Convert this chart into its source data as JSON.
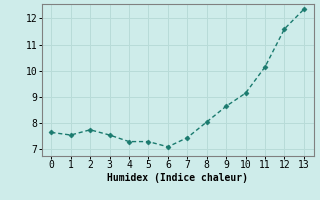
{
  "x": [
    0,
    1,
    2,
    3,
    4,
    5,
    6,
    7,
    8,
    9,
    10,
    11,
    12,
    13
  ],
  "y": [
    7.65,
    7.55,
    7.75,
    7.55,
    7.3,
    7.3,
    7.1,
    7.45,
    8.05,
    8.65,
    9.15,
    10.15,
    11.6,
    12.35
  ],
  "line_color": "#1a7a6e",
  "marker": "D",
  "marker_size": 2.5,
  "background_color": "#ceecea",
  "grid_color": "#b8dbd8",
  "xlabel": "Humidex (Indice chaleur)",
  "xlabel_fontsize": 7,
  "tick_fontsize": 7,
  "ylim": [
    6.75,
    12.55
  ],
  "xlim": [
    -0.5,
    13.5
  ],
  "yticks": [
    7,
    8,
    9,
    10,
    11,
    12
  ],
  "xticks": [
    0,
    1,
    2,
    3,
    4,
    5,
    6,
    7,
    8,
    9,
    10,
    11,
    12,
    13
  ],
  "linewidth": 1.0,
  "spine_color": "#808080"
}
